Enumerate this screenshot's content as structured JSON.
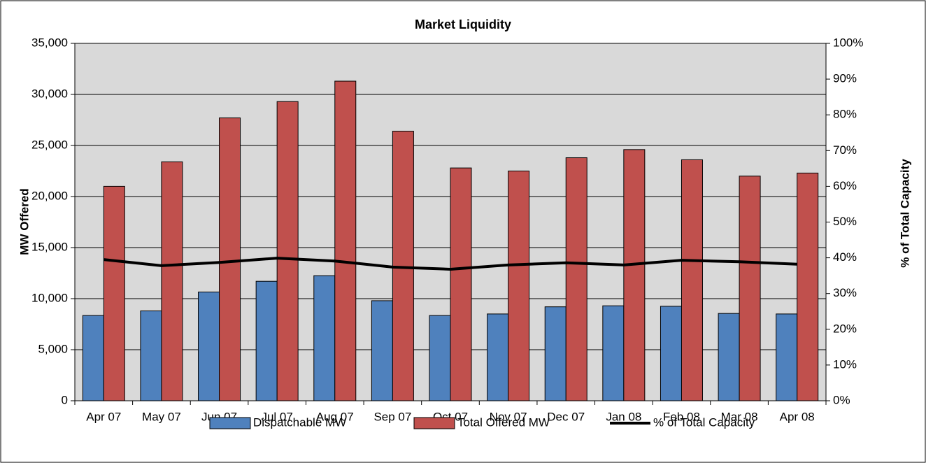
{
  "chart_data": {
    "type": "bar",
    "title": "Market Liquidity",
    "y_label": "MW Offered",
    "y2_label": "% of Total Capacity",
    "categories": [
      "Apr 07",
      "May 07",
      "Jun 07",
      "Jul 07",
      "Aug 07",
      "Sep 07",
      "Oct 07",
      "Nov 07",
      "Dec 07",
      "Jan 08",
      "Feb 08",
      "Mar 08",
      "Apr 08"
    ],
    "series": [
      {
        "name": "Dispatchable MW",
        "color": "#4f81bd",
        "type": "bar",
        "values": [
          8350,
          8800,
          10650,
          11700,
          12250,
          9800,
          8350,
          8500,
          9200,
          9300,
          9250,
          8550,
          8500
        ]
      },
      {
        "name": "Total Offered MW",
        "color": "#c0504d",
        "type": "bar",
        "values": [
          21000,
          23400,
          27700,
          29300,
          31300,
          26400,
          22800,
          22500,
          23800,
          24600,
          23600,
          22000,
          22300
        ]
      },
      {
        "name": "% of Total Capacity",
        "color": "#000000",
        "type": "line",
        "axis": "y2",
        "values": [
          39.5,
          37.8,
          38.7,
          39.9,
          39.1,
          37.4,
          36.8,
          38,
          38.6,
          38,
          39.3,
          38.9,
          38.2
        ]
      }
    ],
    "ylim": [
      0,
      35000
    ],
    "yticks": [
      0,
      {
        "value": 5000,
        "label": "5,000"
      },
      {
        "value": 10000,
        "label": "10,000"
      },
      {
        "value": 15000,
        "label": "15,000"
      },
      {
        "value": 20000,
        "label": "20,000"
      },
      {
        "value": 25000,
        "label": "25,000"
      },
      {
        "value": 30000,
        "label": "30,000"
      },
      {
        "value": 35000,
        "label": "35,000"
      }
    ],
    "y2lim": [
      0,
      100
    ],
    "y2ticks": [
      {
        "value": 0,
        "label": "0%"
      },
      {
        "value": 10,
        "label": "10%"
      },
      {
        "value": 20,
        "label": "20%"
      },
      {
        "value": 30,
        "label": "30%"
      },
      {
        "value": 40,
        "label": "40%"
      },
      {
        "value": 50,
        "label": "50%"
      },
      {
        "value": 60,
        "label": "60%"
      },
      {
        "value": 70,
        "label": "70%"
      },
      {
        "value": 80,
        "label": "80%"
      },
      {
        "value": 90,
        "label": "90%"
      },
      {
        "value": 100,
        "label": "100%"
      }
    ],
    "grid": true,
    "plot_background": "#d9d9d9",
    "legend": "bottom"
  }
}
